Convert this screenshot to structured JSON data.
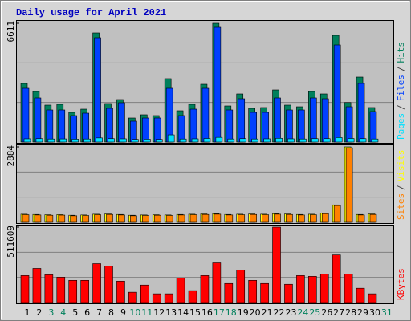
{
  "chart_data": [
    {
      "type": "bar",
      "title": "Daily usage for April 2021",
      "ylim": [
        0,
        6611
      ],
      "yticks": [
        6611
      ],
      "legend_separator": "/",
      "series": [
        {
          "name": "Pages",
          "color": "#00e0ff",
          "values": [
            180,
            190,
            170,
            175,
            160,
            170,
            230,
            190,
            180,
            150,
            160,
            150,
            400,
            170,
            180,
            200,
            260,
            170,
            190,
            170,
            180,
            210,
            180,
            170,
            190,
            190,
            250,
            200,
            190,
            170,
            null
          ]
        },
        {
          "name": "Files",
          "color": "#0040ff",
          "values": [
            2993,
            2457,
            1787,
            1787,
            1474,
            1608,
            5807,
            1876,
            2189,
            1161,
            1340,
            1340,
            2993,
            1474,
            1831,
            2993,
            6388,
            1787,
            2412,
            1653,
            1653,
            2457,
            1787,
            1787,
            2457,
            2412,
            5405,
            1965,
            3261,
            1697,
            null
          ]
        },
        {
          "name": "Hits",
          "color": "#00805c",
          "values": [
            3261,
            2814,
            2055,
            2099,
            1653,
            1831,
            6075,
            2144,
            2367,
            1340,
            1519,
            1474,
            3529,
            1742,
            2099,
            3216,
            6611,
            2010,
            2680,
            1876,
            1921,
            2903,
            2055,
            1965,
            2814,
            2680,
            5941,
            2200,
            3618,
            1921,
            null
          ]
        }
      ]
    },
    {
      "type": "bar",
      "ylim": [
        0,
        2884
      ],
      "yticks": [
        2884
      ],
      "legend_separator": "/",
      "series": [
        {
          "name": "Sites",
          "color": "#ff8000",
          "values": [
            290,
            280,
            270,
            275,
            250,
            260,
            290,
            300,
            280,
            250,
            260,
            270,
            260,
            280,
            290,
            300,
            310,
            280,
            290,
            300,
            290,
            310,
            300,
            280,
            290,
            330,
            640,
            2850,
            280,
            300,
            null
          ]
        },
        {
          "name": "Visits",
          "color": "#ffff00",
          "values": [
            310,
            300,
            290,
            295,
            270,
            280,
            310,
            320,
            300,
            270,
            280,
            290,
            280,
            300,
            310,
            320,
            330,
            300,
            310,
            320,
            310,
            330,
            320,
            300,
            310,
            350,
            667,
            2884,
            300,
            320,
            null
          ]
        }
      ]
    },
    {
      "type": "bar",
      "ylim": [
        0,
        511609
      ],
      "yticks": [
        511609
      ],
      "categories": [
        "1",
        "2",
        "3",
        "4",
        "5",
        "6",
        "7",
        "8",
        "9",
        "10",
        "11",
        "12",
        "13",
        "14",
        "15",
        "16",
        "17",
        "18",
        "19",
        "20",
        "21",
        "22",
        "23",
        "24",
        "25",
        "26",
        "27",
        "28",
        "29",
        "30",
        "31"
      ],
      "category_colors": [
        "#000000",
        "#000000",
        "#00805c",
        "#00805c",
        "#000000",
        "#000000",
        "#000000",
        "#000000",
        "#000000",
        "#00805c",
        "#00805c",
        "#000000",
        "#000000",
        "#000000",
        "#000000",
        "#000000",
        "#00805c",
        "#00805c",
        "#000000",
        "#000000",
        "#000000",
        "#000000",
        "#000000",
        "#00805c",
        "#00805c",
        "#000000",
        "#000000",
        "#000000",
        "#000000",
        "#000000",
        "#00805c"
      ],
      "series": [
        {
          "name": "KBytes",
          "color": "#ff0000",
          "values": [
            183090,
            231555,
            188475,
            172320,
            150780,
            150780,
            263865,
            247710,
            145395,
            70005,
            118470,
            59235,
            59235,
            166935,
            80775,
            183090,
            269250,
            129240,
            220785,
            150780,
            129240,
            511609,
            123855,
            183090,
            177705,
            193860,
            323100,
            193860,
            96930,
            59235,
            null
          ]
        }
      ]
    }
  ]
}
